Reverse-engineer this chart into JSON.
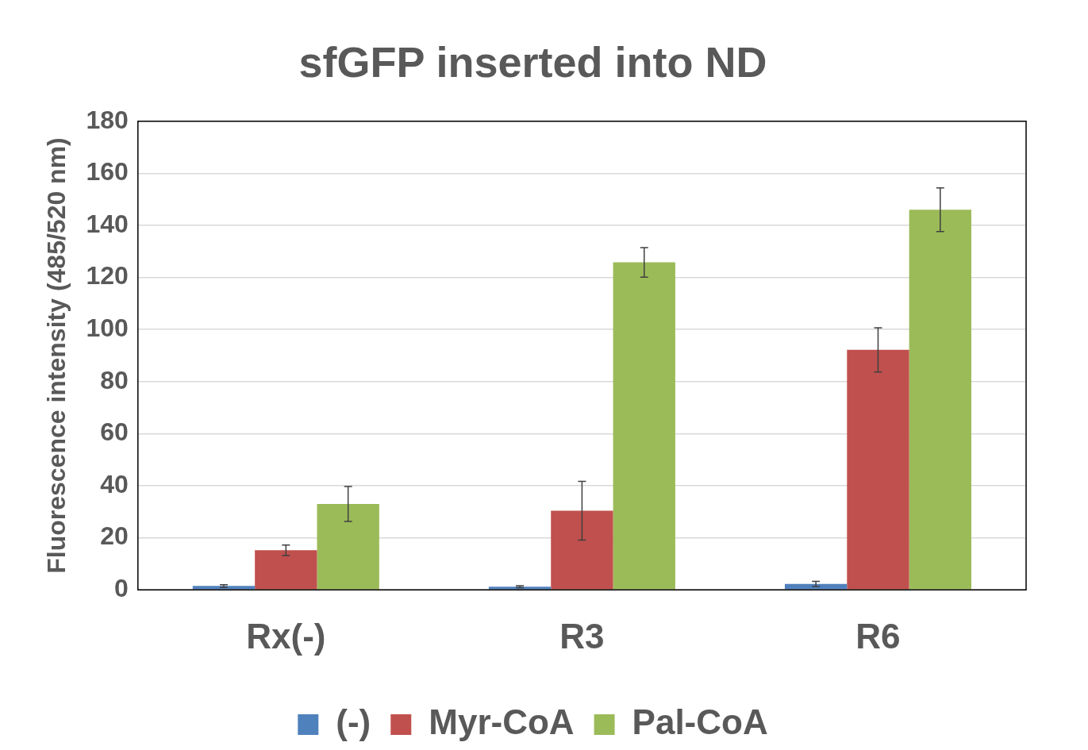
{
  "chart_data": {
    "type": "bar",
    "title": "sfGFP inserted into ND",
    "ylabel": "Fluorescence intensity (485/520 nm)",
    "categories": [
      "Rx(-)",
      "R3",
      "R6"
    ],
    "series": [
      {
        "name": "(-)",
        "color": "#4f81bd",
        "values": [
          1.5,
          1.2,
          2.3
        ],
        "errors": [
          0.5,
          0.4,
          1
        ]
      },
      {
        "name": "Myr-CoA",
        "color": "#c0504d",
        "values": [
          15.2,
          30.4,
          92.2
        ],
        "errors": [
          2,
          11.3,
          8.5
        ]
      },
      {
        "name": "Pal-CoA",
        "color": "#9bbb59",
        "values": [
          33,
          125.8,
          146
        ],
        "errors": [
          6.7,
          5.7,
          8.4
        ]
      }
    ],
    "ylim": [
      0,
      180
    ],
    "yticks": [
      0,
      20,
      40,
      60,
      80,
      100,
      120,
      140,
      160,
      180
    ],
    "grid": "y",
    "legend": "bottom"
  }
}
